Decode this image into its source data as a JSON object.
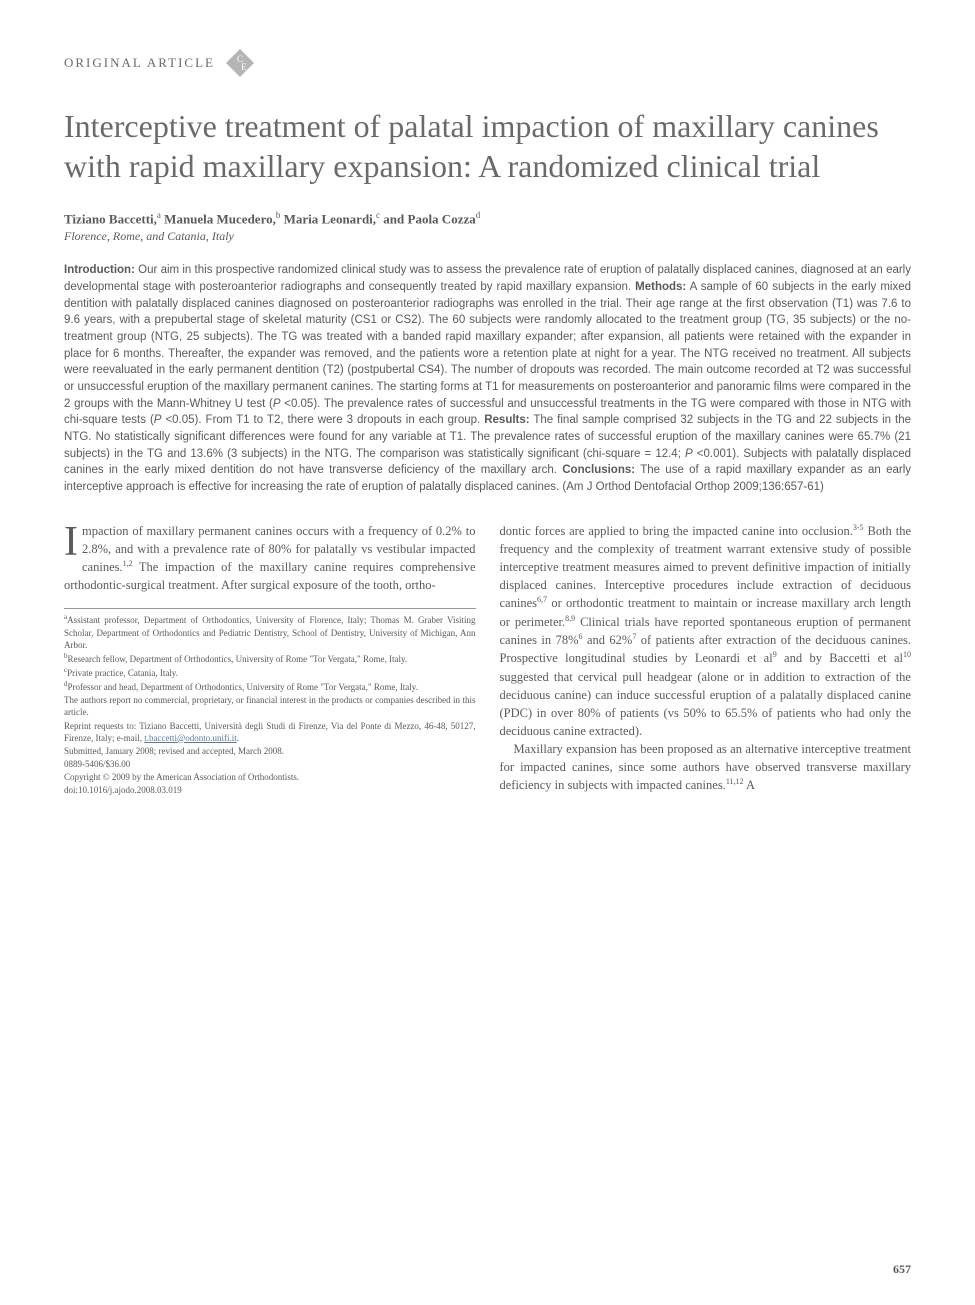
{
  "header": {
    "article_type": "ORIGINAL ARTICLE",
    "badge_top": "C",
    "badge_bottom": "E"
  },
  "title": "Interceptive treatment of palatal impaction of maxillary canines with rapid maxillary expansion: A randomized clinical trial",
  "authors_html": "Tiziano Baccetti,<sup>a</sup> Manuela Mucedero,<sup>b</sup> Maria Leonardi,<sup>c</sup> and Paola Cozza<sup>d</sup>",
  "affiliation": "Florence, Rome, and Catania, Italy",
  "abstract": {
    "intro_label": "Introduction:",
    "intro": " Our aim in this prospective randomized clinical study was to assess the prevalence rate of eruption of palatally displaced canines, diagnosed at an early developmental stage with posteroanterior radiographs and consequently treated by rapid maxillary expansion. ",
    "methods_label": "Methods:",
    "methods": " A sample of 60 subjects in the early mixed dentition with palatally displaced canines diagnosed on posteroanterior radiographs was enrolled in the trial. Their age range at the first observation (T1) was 7.6 to 9.6 years, with a prepubertal stage of skeletal maturity (CS1 or CS2). The 60 subjects were randomly allocated to the treatment group (TG, 35 subjects) or the no-treatment group (NTG, 25 subjects). The TG was treated with a banded rapid maxillary expander; after expansion, all patients were retained with the expander in place for 6 months. Thereafter, the expander was removed, and the patients wore a retention plate at night for a year. The NTG received no treatment. All subjects were reevaluated in the early permanent dentition (T2) (postpubertal CS4). The number of dropouts was recorded. The main outcome recorded at T2 was successful or unsuccessful eruption of the maxillary permanent canines. The starting forms at T1 for measurements on posteroanterior and panoramic films were compared in the 2 groups with the Mann-Whitney U test (",
    "methods_p1": "P",
    "methods_2": " <0.05). The prevalence rates of successful and unsuccessful treatments in the TG were compared with those in NTG with chi-square tests (",
    "methods_p2": "P",
    "methods_3": " <0.05). From T1 to T2, there were 3 dropouts in each group. ",
    "results_label": "Results:",
    "results": " The final sample comprised 32 subjects in the TG and 22 subjects in the NTG. No statistically significant differences were found for any variable at T1. The prevalence rates of successful eruption of the maxillary canines were 65.7% (21 subjects) in the TG and 13.6% (3 subjects) in the NTG. The comparison was statistically significant (chi-square = 12.4; ",
    "results_p": "P",
    "results_2": " <0.001). Subjects with palatally displaced canines in the early mixed dentition do not have transverse deficiency of the maxillary arch. ",
    "conclusions_label": "Conclusions:",
    "conclusions": " The use of a rapid maxillary expander as an early interceptive approach is effective for increasing the rate of eruption of palatally displaced canines. (Am J Orthod Dentofacial Orthop 2009;136:657-61)"
  },
  "body": {
    "col1_p1_html": "mpaction of maxillary permanent canines occurs with a frequency of 0.2% to 2.8%, and with a prevalence rate of 80% for palatally vs vestibular impacted canines.<sup>1,2</sup> The impaction of the maxillary canine requires comprehensive orthodontic-surgical treatment. After surgical exposure of the tooth, ortho-",
    "col1_dropcap": "I",
    "col2_p1_html": "dontic forces are applied to bring the impacted canine into occlusion.<sup>3-5</sup> Both the frequency and the complexity of treatment warrant extensive study of possible interceptive treatment measures aimed to prevent definitive impaction of initially displaced canines. Interceptive procedures include extraction of deciduous canines<sup>6,7</sup> or orthodontic treatment to maintain or increase maxillary arch length or perimeter.<sup>8,9</sup> Clinical trials have reported spontaneous eruption of permanent canines in 78%<sup>6</sup> and 62%<sup>7</sup> of patients after extraction of the deciduous canines. Prospective longitudinal studies by Leonardi et al<sup>9</sup> and by Baccetti et al<sup>10</sup> suggested that cervical pull headgear (alone or in addition to extraction of the deciduous canine) can induce successful eruption of a palatally displaced canine (PDC) in over 80% of patients (vs 50% to 65.5% of patients who had only the deciduous canine extracted).",
    "col2_p2_html": "Maxillary expansion has been proposed as an alternative interceptive treatment for impacted canines, since some authors have observed transverse maxillary deficiency in subjects with impacted canines.<sup>11,12</sup> A"
  },
  "footnotes": {
    "a": "Assistant professor, Department of Orthodontics, University of Florence, Italy; Thomas M. Graber Visiting Scholar, Department of Orthodontics and Pediatric Dentistry, School of Dentistry, University of Michigan, Ann Arbor.",
    "b": "Research fellow, Department of Orthodontics, University of Rome \"Tor Vergata,\" Rome, Italy.",
    "c": "Private practice, Catania, Italy.",
    "d": "Professor and head, Department of Orthodontics, University of Rome \"Tor Vergata,\" Rome, Italy.",
    "disclosure": "The authors report no commercial, proprietary, or financial interest in the products or companies described in this article.",
    "reprint": "Reprint requests to: Tiziano Baccetti, Università degli Studi di Firenze, Via del Ponte di Mezzo, 46-48, 50127, Firenze, Italy; e-mail, ",
    "email": "t.baccetti@odonto.unifi.it",
    "reprint_end": ".",
    "submitted": "Submitted, January 2008; revised and accepted, March 2008.",
    "issn": "0889-5406/$36.00",
    "copyright": "Copyright © 2009 by the American Association of Orthodontists.",
    "doi": "doi:10.1016/j.ajodo.2008.03.019"
  },
  "page_number": "657",
  "colors": {
    "text": "#5a5a5a",
    "background": "#ffffff",
    "badge_fill": "#9a9a9a",
    "link": "#5a7a9a"
  }
}
